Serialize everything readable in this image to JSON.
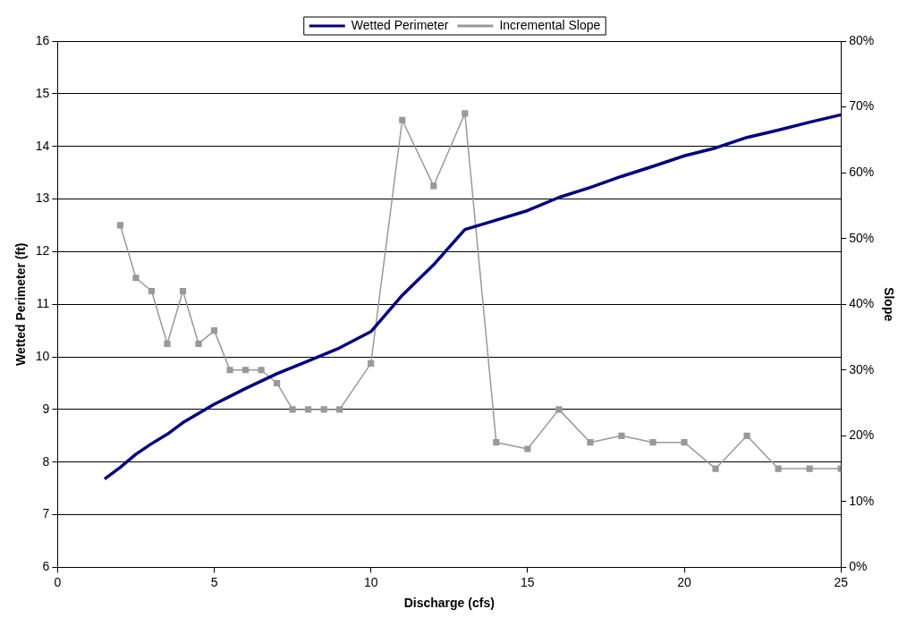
{
  "chart_data": {
    "type": "line",
    "xlabel": "Discharge (cfs)",
    "ylabel": "Wetted Perimeter (ft)",
    "y2label": "Slope",
    "xlim": [
      0,
      25
    ],
    "xticks": [
      0,
      5,
      10,
      15,
      20,
      25
    ],
    "ylim": [
      6,
      16
    ],
    "yticks": [
      6,
      7,
      8,
      9,
      10,
      11,
      12,
      13,
      14,
      15,
      16
    ],
    "y2lim": [
      0,
      80
    ],
    "y2ticks": [
      {
        "value": 0,
        "label": "0%"
      },
      {
        "value": 10,
        "label": "10%"
      },
      {
        "value": 20,
        "label": "20%"
      },
      {
        "value": 30,
        "label": "30%"
      },
      {
        "value": 40,
        "label": "40%"
      },
      {
        "value": 50,
        "label": "50%"
      },
      {
        "value": 60,
        "label": "60%"
      },
      {
        "value": 70,
        "label": "70%"
      },
      {
        "value": 80,
        "label": "80%"
      }
    ],
    "grid": "y",
    "legend": "top",
    "series": [
      {
        "name": "Wetted Perimeter",
        "color": "#000080",
        "marker": "none",
        "x": [
          1.5,
          2,
          2.5,
          3,
          3.5,
          4,
          5,
          6,
          7,
          8,
          9,
          10,
          11,
          12,
          13,
          14,
          15,
          16,
          17,
          18,
          19,
          20,
          21,
          22,
          23,
          24,
          25
        ],
        "values": [
          7.68,
          7.9,
          8.15,
          8.35,
          8.53,
          8.75,
          9.1,
          9.4,
          9.68,
          9.92,
          10.17,
          10.48,
          11.17,
          11.75,
          12.42,
          12.6,
          12.78,
          13.03,
          13.22,
          13.43,
          13.62,
          13.82,
          13.97,
          14.17,
          14.31,
          14.46,
          14.6
        ]
      },
      {
        "name": "Incremental Slope",
        "color": "#999999",
        "marker": "square",
        "axis": "y2",
        "x": [
          2,
          2.5,
          3,
          3.5,
          4,
          4.5,
          5,
          5.5,
          6,
          6.5,
          7,
          7.5,
          8,
          8.5,
          9,
          10,
          11,
          12,
          13,
          14,
          15,
          16,
          17,
          18,
          19,
          20,
          21,
          22,
          23,
          24,
          25
        ],
        "values": [
          52,
          44,
          42,
          34,
          42,
          34,
          36,
          30,
          30,
          30,
          28,
          24,
          24,
          24,
          24,
          31,
          68,
          58,
          69,
          19,
          18,
          24,
          19,
          20,
          19,
          19,
          15,
          20,
          15,
          15,
          15
        ]
      }
    ]
  }
}
